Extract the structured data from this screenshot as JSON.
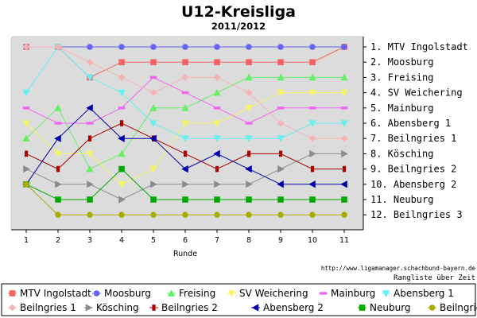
{
  "chart_data": {
    "type": "line",
    "title": "U12-Kreisliga",
    "subtitle": "2011/2012",
    "xlabel": "Runde",
    "ylabel": "",
    "x": [
      1,
      2,
      3,
      4,
      5,
      6,
      7,
      8,
      9,
      10,
      11
    ],
    "ylim": [
      1,
      12
    ],
    "y_inverted": true,
    "grid": false,
    "legend_position": "bottom",
    "source_url": "http://www.ligamanager.schachbund-bayern.de",
    "source_note": "Rangliste über Zeit",
    "rank_labels": [
      "1. MTV Ingolstadt",
      "2. Moosburg",
      "3. Freising",
      "4. SV Weichering",
      "5. Mainburg",
      "6. Abensberg 1",
      "7. Beilngries 1",
      "8. Kösching",
      "9. Beilngries 2",
      "10. Abensberg 2",
      "11. Neuburg",
      "12. Beilngries 3"
    ],
    "series": [
      {
        "name": "MTV Ingolstadt",
        "color": "#f26464",
        "marker": "square",
        "values": [
          1,
          1,
          3,
          2,
          2,
          2,
          2,
          2,
          2,
          2,
          1
        ]
      },
      {
        "name": "Moosburg",
        "color": "#6464f0",
        "marker": "circle",
        "values": [
          1,
          1,
          1,
          1,
          1,
          1,
          1,
          1,
          1,
          1,
          1
        ]
      },
      {
        "name": "Freising",
        "color": "#64f064",
        "marker": "triangle-up",
        "values": [
          7,
          5,
          9,
          8,
          5,
          5,
          4,
          3,
          3,
          3,
          3
        ]
      },
      {
        "name": "SV Weichering",
        "color": "#f5f564",
        "marker": "triangle-down",
        "values": [
          6,
          8,
          8,
          10,
          9,
          6,
          6,
          5,
          4,
          4,
          4
        ]
      },
      {
        "name": "Mainburg",
        "color": "#f064f0",
        "marker": "dash",
        "values": [
          5,
          6,
          6,
          5,
          3,
          4,
          5,
          6,
          5,
          5,
          5
        ]
      },
      {
        "name": "Abensberg 1",
        "color": "#64f0f0",
        "marker": "triangle-down",
        "values": [
          4,
          1,
          3,
          4,
          6,
          7,
          7,
          7,
          7,
          6,
          6
        ]
      },
      {
        "name": "Beilngries 1",
        "color": "#f5b4b4",
        "marker": "diamond",
        "values": [
          1,
          1,
          2,
          3,
          4,
          3,
          3,
          4,
          6,
          7,
          7
        ]
      },
      {
        "name": "Kösching",
        "color": "#8c8c8c",
        "marker": "triangle-right",
        "values": [
          9,
          10,
          10,
          11,
          10,
          10,
          10,
          10,
          9,
          8,
          8
        ]
      },
      {
        "name": "Beilngries 2",
        "color": "#aa0000",
        "marker": "bar",
        "values": [
          8,
          9,
          7,
          6,
          7,
          8,
          9,
          8,
          8,
          9,
          9
        ]
      },
      {
        "name": "Abensberg 2",
        "color": "#0000aa",
        "marker": "triangle-left",
        "values": [
          10,
          7,
          5,
          7,
          7,
          9,
          8,
          9,
          10,
          10,
          10
        ]
      },
      {
        "name": "Neuburg",
        "color": "#00aa00",
        "marker": "square",
        "values": [
          10,
          11,
          11,
          9,
          11,
          11,
          11,
          11,
          11,
          11,
          11
        ]
      },
      {
        "name": "Beilngries 3",
        "color": "#aaaa00",
        "marker": "circle",
        "values": [
          10,
          12,
          12,
          12,
          12,
          12,
          12,
          12,
          12,
          12,
          12
        ]
      }
    ]
  }
}
